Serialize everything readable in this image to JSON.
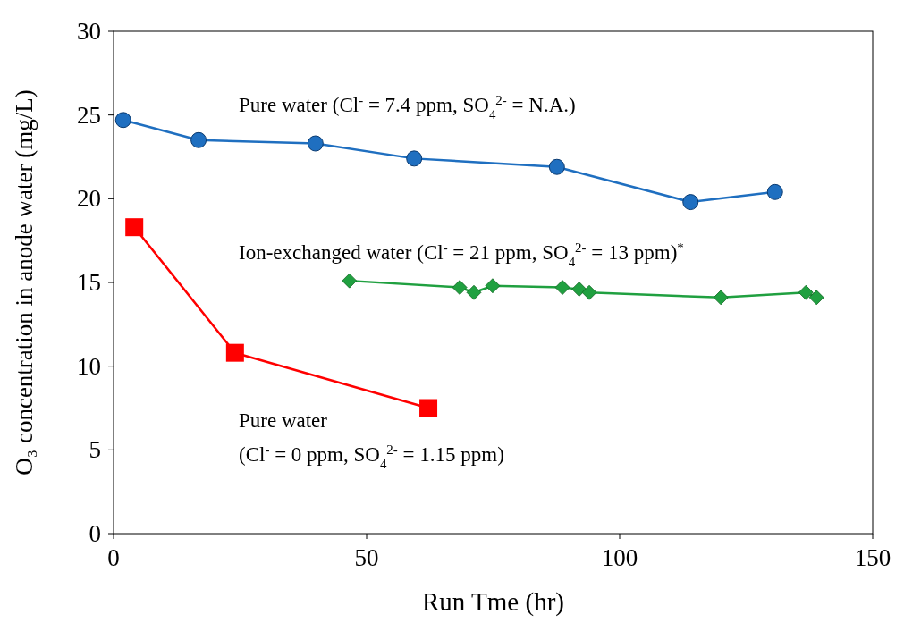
{
  "chart_data": {
    "type": "line",
    "xlabel": "Run Tme (hr)",
    "ylabel": "O₃ concentration in anode water (mg/L)",
    "xlim": [
      0,
      150
    ],
    "xticks": [
      0,
      50,
      100,
      150
    ],
    "ylim": [
      0,
      30
    ],
    "yticks": [
      0,
      5,
      10,
      15,
      20,
      25,
      30
    ],
    "grid": false,
    "series": [
      {
        "name": "Pure water (Cl$^{-}$ = 7.4 ppm, SO$_{4}$$^{2-}$ = N.A.)",
        "color": "#1f6fc0",
        "marker": "circle",
        "x": [
          1.9,
          16.8,
          39.9,
          59.4,
          87.6,
          114,
          130.7
        ],
        "values": [
          24.7,
          23.5,
          23.3,
          22.4,
          21.9,
          19.8,
          20.4
        ]
      },
      {
        "name": "Ion-exchanged water (Cl$^{-}$ = 21 ppm, SO$_{4}$$^{2-}$ = 13 ppm)$^{*}$",
        "color": "#20a040",
        "marker": "diamond",
        "x": [
          46.6,
          68.4,
          71.2,
          74.9,
          88.7,
          92,
          94,
          120,
          136.8,
          138.9
        ],
        "values": [
          15.1,
          14.7,
          14.4,
          14.8,
          14.7,
          14.6,
          14.4,
          14.1,
          14.4,
          14.1
        ]
      },
      {
        "name": "Pure water\n(Cl$^{-}$ = 0 ppm, SO$_{4}$$^{2-}$ = 1.15 ppm)",
        "color": "#ff0000",
        "marker": "square",
        "x": [
          4.1,
          24,
          62.2
        ],
        "values": [
          18.3,
          10.8,
          7.5
        ]
      }
    ]
  }
}
